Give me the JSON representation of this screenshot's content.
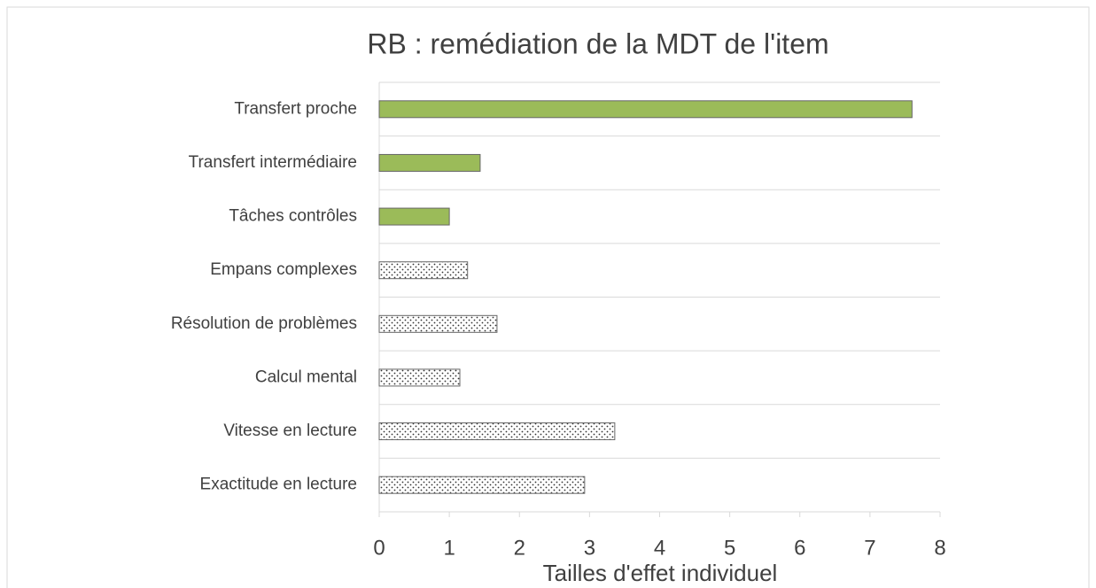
{
  "chart_data": {
    "type": "barh",
    "title": "RB : remédiation de la MDT de l'item",
    "categories": [
      "Transfert proche",
      "Transfert intermédiaire",
      "Tâches contrôles",
      "Empans complexes",
      "Résolution de problèmes",
      "Calcul mental",
      "Vitesse en lecture",
      "Exactitude en lecture"
    ],
    "values": [
      7.6,
      1.44,
      1.0,
      1.26,
      1.68,
      1.15,
      3.36,
      2.93
    ],
    "bar_fills": [
      "#9bbb59",
      "#9bbb59",
      "#9bbb59",
      "dots",
      "dots",
      "dots",
      "dots",
      "dots"
    ],
    "xlabel": "Tailles d'effet individuel",
    "xlim": [
      0,
      8
    ],
    "xticks": [
      0,
      1,
      2,
      3,
      4,
      5,
      6,
      7,
      8
    ],
    "grid": true
  }
}
